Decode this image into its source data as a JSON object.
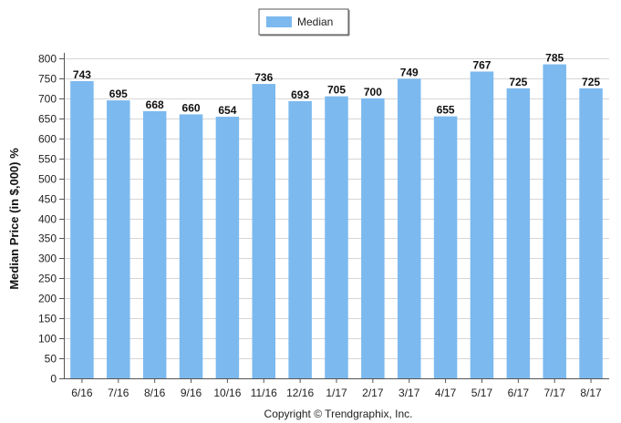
{
  "chart_data": {
    "type": "bar",
    "categories": [
      "6/16",
      "7/16",
      "8/16",
      "9/16",
      "10/16",
      "11/16",
      "12/16",
      "1/17",
      "2/17",
      "3/17",
      "4/17",
      "5/17",
      "6/17",
      "7/17",
      "8/17"
    ],
    "series": [
      {
        "name": "Median",
        "values": [
          743,
          695,
          668,
          660,
          654,
          736,
          693,
          705,
          700,
          749,
          655,
          767,
          725,
          785,
          725
        ],
        "color": "#7cb9ef"
      }
    ],
    "ylabel": "Median Price (in $,000) %",
    "xlabel": "",
    "ylim": [
      0,
      800
    ],
    "yticks": [
      0,
      50,
      100,
      150,
      200,
      250,
      300,
      350,
      400,
      450,
      500,
      550,
      600,
      650,
      700,
      750,
      800
    ],
    "grid": true,
    "legend": "top-center"
  },
  "footer": {
    "copyright": "Copyright © Trendgraphix, Inc."
  }
}
